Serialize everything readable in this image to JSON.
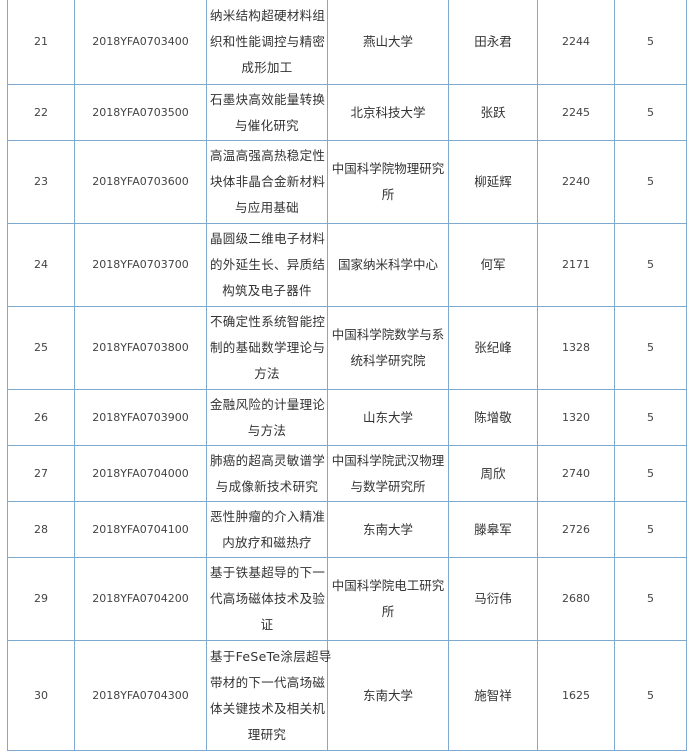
{
  "table": {
    "rows": [
      {
        "no": "21",
        "code": "2018YFA0703400",
        "name": [
          "纳米结构超硬材料组",
          "织和性能调控与精密",
          "成形加工"
        ],
        "inst": [
          "燕山大学"
        ],
        "person": "田永君",
        "budget": "2244",
        "years": "5",
        "h": 85
      },
      {
        "no": "22",
        "code": "2018YFA0703500",
        "name": [
          "石墨炔高效能量转换",
          "与催化研究"
        ],
        "inst": [
          "北京科技大学"
        ],
        "person": "张跃",
        "budget": "2245",
        "years": "5",
        "h": 56
      },
      {
        "no": "23",
        "code": "2018YFA0703600",
        "name": [
          "高温高强高热稳定性",
          "块体非晶合金新材料",
          "与应用基础"
        ],
        "inst": [
          "中国科学院物理研究",
          "所"
        ],
        "person": "柳延辉",
        "budget": "2240",
        "years": "5",
        "h": 83
      },
      {
        "no": "24",
        "code": "2018YFA0703700",
        "name": [
          "晶圆级二维电子材料",
          "的外延生长、异质结",
          "构筑及电子器件"
        ],
        "inst": [
          "国家纳米科学中心"
        ],
        "person": "何军",
        "budget": "2171",
        "years": "5",
        "h": 83
      },
      {
        "no": "25",
        "code": "2018YFA0703800",
        "name": [
          "不确定性系统智能控",
          "制的基础数学理论与",
          "方法"
        ],
        "inst": [
          "中国科学院数学与系",
          "统科学研究院"
        ],
        "person": "张纪峰",
        "budget": "1328",
        "years": "5",
        "h": 83
      },
      {
        "no": "26",
        "code": "2018YFA0703900",
        "name": [
          "金融风险的计量理论",
          "与方法"
        ],
        "inst": [
          "山东大学"
        ],
        "person": "陈增敬",
        "budget": "1320",
        "years": "5",
        "h": 56
      },
      {
        "no": "27",
        "code": "2018YFA0704000",
        "name": [
          "肺癌的超高灵敏谱学",
          "与成像新技术研究"
        ],
        "inst": [
          "中国科学院武汉物理",
          "与数学研究所"
        ],
        "person": "周欣",
        "budget": "2740",
        "years": "5",
        "h": 56
      },
      {
        "no": "28",
        "code": "2018YFA0704100",
        "name": [
          "恶性肿瘤的介入精准",
          "内放疗和磁热疗"
        ],
        "inst": [
          "东南大学"
        ],
        "person": "滕皋军",
        "budget": "2726",
        "years": "5",
        "h": 56
      },
      {
        "no": "29",
        "code": "2018YFA0704200",
        "name": [
          "基于铁基超导的下一",
          "代高场磁体技术及验",
          "证"
        ],
        "inst": [
          "中国科学院电工研究",
          "所"
        ],
        "person": "马衍伟",
        "budget": "2680",
        "years": "5",
        "h": 83
      },
      {
        "no": "30",
        "code": "2018YFA0704300",
        "name": [
          "基于FeSeTe涂层超导",
          "带材的下一代高场磁",
          "体关键技术及相关机",
          "理研究"
        ],
        "inst": [
          "东南大学"
        ],
        "person": "施智祥",
        "budget": "1625",
        "years": "5",
        "h": 110
      }
    ]
  },
  "colors": {
    "border": "#7fa9cf",
    "text": "#333333"
  }
}
